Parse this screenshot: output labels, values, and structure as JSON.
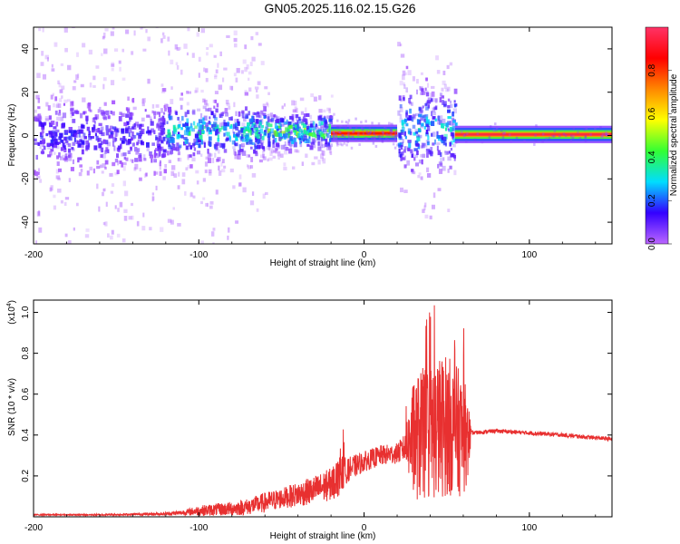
{
  "title": "GN05.2025.116.02.15.G26",
  "colors": {
    "snr_line": "#e83030",
    "colorbar": [
      "#bb66ff",
      "#3300ff",
      "#00ddff",
      "#33ff33",
      "#ffff00",
      "#ff8800",
      "#ff0000",
      "#ff3366"
    ]
  },
  "chart_data": [
    {
      "type": "heatmap",
      "xlabel": "Height of straight line (km)",
      "ylabel": "Frequency (Hz)",
      "xlim": [
        -200,
        150
      ],
      "ylim": [
        -50,
        50
      ],
      "xticks": [
        -200,
        -100,
        0,
        100
      ],
      "yticks": [
        40,
        20,
        0,
        -20,
        -40
      ],
      "colorbar": {
        "label": "Normalized spectral amplitude",
        "range": [
          0,
          1
        ],
        "ticks": [
          "0.0",
          "0.2",
          "0.4",
          "0.6",
          "0.8"
        ]
      },
      "regions": [
        {
          "x_range": [
            -200,
            -120
          ],
          "freq_center": 0,
          "core_spread_hz": 8,
          "scatter_spread_hz": 48,
          "peak_amplitude": 0.15
        },
        {
          "x_range": [
            -120,
            -60
          ],
          "freq_center": 2,
          "core_spread_hz": 6,
          "scatter_spread_hz": 30,
          "peak_amplitude": 0.35
        },
        {
          "x_range": [
            -60,
            -20
          ],
          "freq_center": 2,
          "core_spread_hz": 4,
          "scatter_spread_hz": 8,
          "peak_amplitude": 0.45
        },
        {
          "x_range": [
            -20,
            0
          ],
          "freq_center": 1,
          "core_spread_hz": 1,
          "scatter_spread_hz": 3,
          "peak_amplitude": 0.85
        },
        {
          "x_range": [
            0,
            20
          ],
          "freq_center": 1,
          "core_spread_hz": 1,
          "scatter_spread_hz": 3,
          "peak_amplitude": 0.85
        },
        {
          "x_range": [
            20,
            55
          ],
          "freq_center": 3,
          "core_spread_hz": 10,
          "scatter_spread_hz": 20,
          "peak_amplitude": 0.3
        },
        {
          "x_range": [
            55,
            150
          ],
          "freq_center": 0.5,
          "core_spread_hz": 0.5,
          "scatter_spread_hz": 2,
          "peak_amplitude": 0.95
        }
      ]
    },
    {
      "type": "line",
      "xlabel": "Height of straight line (km)",
      "ylabel": "SNR (10 * v/v)",
      "y_multiplier_label": "(x10",
      "y_multiplier_exp": "4",
      "y_multiplier_close": ")",
      "xlim": [
        -200,
        150
      ],
      "ylim": [
        0,
        1.06
      ],
      "xticks": [
        -200,
        -100,
        0,
        100
      ],
      "yticks": [
        "1.0",
        "0.8",
        "0.6",
        "0.4",
        "0.2"
      ],
      "series": [
        {
          "x": [
            -200,
            -180,
            -160,
            -140,
            -120,
            -110,
            -100,
            -90,
            -80,
            -70,
            -60,
            -50,
            -40,
            -30,
            -20,
            -15,
            -10,
            0,
            10,
            20,
            25,
            30,
            40,
            50,
            60,
            63,
            65,
            80,
            100,
            120,
            150
          ],
          "y": [
            0.01,
            0.01,
            0.01,
            0.012,
            0.015,
            0.02,
            0.03,
            0.035,
            0.04,
            0.05,
            0.07,
            0.09,
            0.11,
            0.13,
            0.16,
            0.2,
            0.23,
            0.27,
            0.3,
            0.31,
            0.34,
            0.38,
            0.42,
            0.45,
            0.4,
            0.38,
            0.41,
            0.42,
            0.41,
            0.4,
            0.38
          ],
          "noise": [
            0.003,
            0.003,
            0.004,
            0.005,
            0.008,
            0.012,
            0.025,
            0.03,
            0.035,
            0.04,
            0.05,
            0.05,
            0.06,
            0.07,
            0.08,
            0.1,
            0.06,
            0.05,
            0.05,
            0.05,
            0.07,
            0.3,
            0.35,
            0.35,
            0.3,
            0.2,
            0.01,
            0.01,
            0.01,
            0.01,
            0.01
          ]
        }
      ]
    }
  ]
}
